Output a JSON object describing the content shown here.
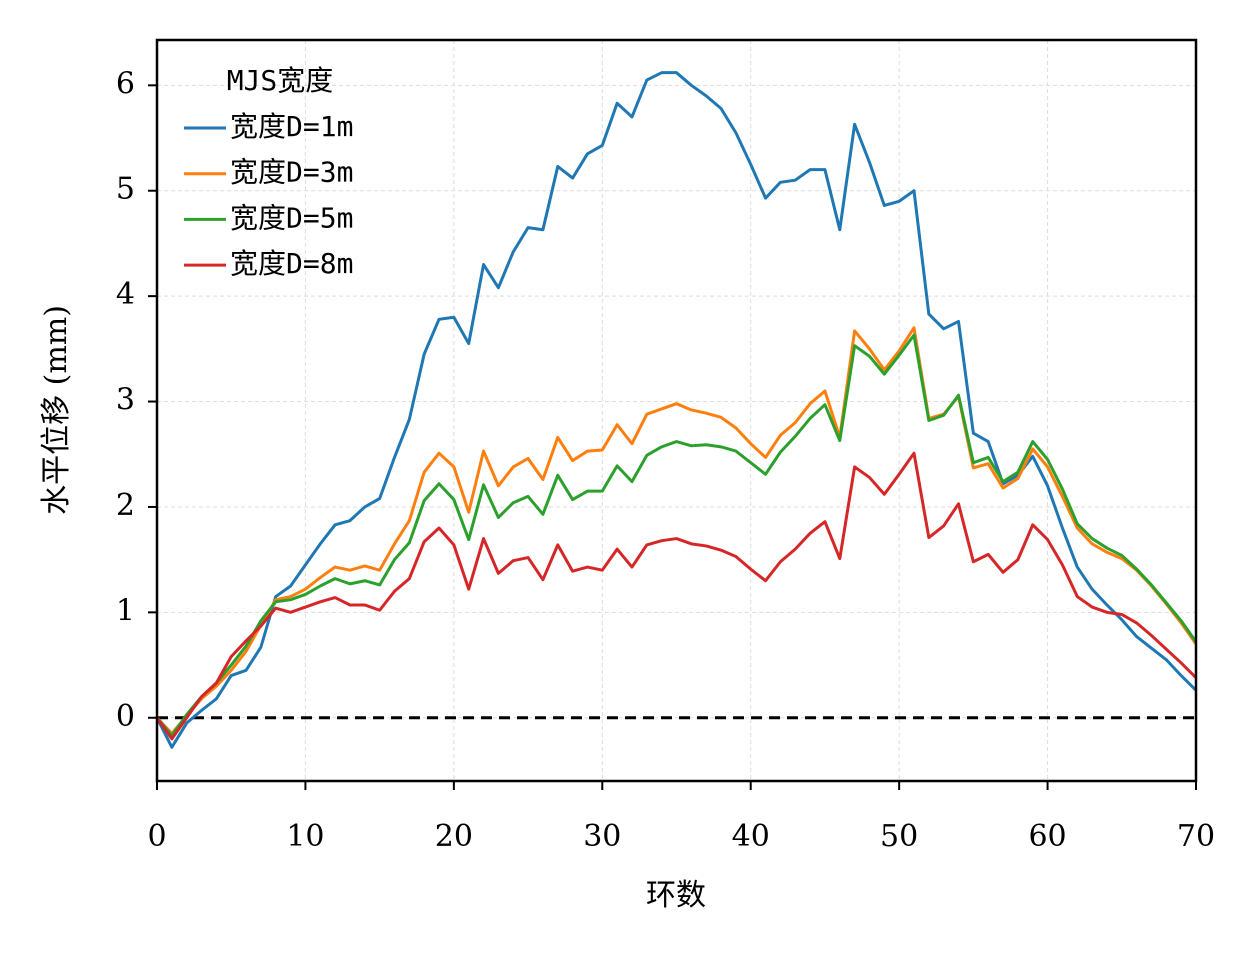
{
  "chart_data": {
    "type": "line",
    "xlabel": "环数",
    "ylabel": "水平位移 (mm)",
    "legend_title": "MJS宽度",
    "legend": "upper left",
    "grid": true,
    "xlim": [
      0,
      70
    ],
    "xticks": [
      0,
      10,
      20,
      30,
      40,
      50,
      60,
      70
    ],
    "ylim": [
      -0.6,
      6.43
    ],
    "yticks": [
      0,
      1,
      2,
      3,
      4,
      5,
      6
    ],
    "hlines": [
      0
    ],
    "x": [
      0,
      1,
      2,
      3,
      4,
      5,
      6,
      7,
      8,
      9,
      10,
      11,
      12,
      13,
      14,
      15,
      16,
      17,
      18,
      19,
      20,
      21,
      22,
      23,
      24,
      25,
      26,
      27,
      28,
      29,
      30,
      31,
      32,
      33,
      34,
      35,
      36,
      37,
      38,
      39,
      40,
      41,
      42,
      43,
      44,
      45,
      46,
      47,
      48,
      49,
      50,
      51,
      52,
      53,
      54,
      55,
      56,
      57,
      58,
      59,
      60,
      61,
      62,
      63,
      64,
      65,
      66,
      67,
      68,
      69,
      70
    ],
    "series": [
      {
        "name": "宽度D=1m",
        "color": "#1f77b4",
        "values": [
          0,
          -0.28,
          -0.05,
          0.07,
          0.18,
          0.4,
          0.45,
          0.67,
          1.15,
          1.25,
          1.45,
          1.65,
          1.83,
          1.87,
          2.0,
          2.08,
          2.47,
          2.83,
          3.45,
          3.78,
          3.8,
          3.55,
          4.3,
          4.08,
          4.42,
          4.65,
          4.63,
          5.23,
          5.12,
          5.35,
          5.43,
          5.83,
          5.7,
          6.05,
          6.12,
          6.12,
          6.0,
          5.9,
          5.78,
          5.55,
          5.25,
          4.93,
          5.08,
          5.1,
          5.2,
          5.2,
          4.63,
          5.63,
          5.27,
          4.86,
          4.9,
          5.0,
          3.83,
          3.69,
          3.76,
          2.7,
          2.62,
          2.22,
          2.3,
          2.48,
          2.2,
          1.8,
          1.43,
          1.22,
          1.07,
          0.93,
          0.77,
          0.66,
          0.55,
          0.4,
          0.26
        ]
      },
      {
        "name": "宽度D=3m",
        "color": "#ff7f0e",
        "values": [
          0,
          -0.15,
          0.02,
          0.18,
          0.3,
          0.45,
          0.63,
          0.88,
          1.12,
          1.15,
          1.22,
          1.33,
          1.43,
          1.4,
          1.44,
          1.4,
          1.65,
          1.87,
          2.33,
          2.51,
          2.38,
          1.95,
          2.53,
          2.2,
          2.38,
          2.46,
          2.26,
          2.66,
          2.44,
          2.53,
          2.54,
          2.78,
          2.6,
          2.88,
          2.93,
          2.98,
          2.92,
          2.89,
          2.85,
          2.75,
          2.6,
          2.47,
          2.68,
          2.8,
          2.98,
          3.1,
          2.66,
          3.67,
          3.5,
          3.3,
          3.48,
          3.7,
          2.84,
          2.88,
          3.05,
          2.37,
          2.41,
          2.18,
          2.27,
          2.55,
          2.38,
          2.1,
          1.8,
          1.65,
          1.57,
          1.51,
          1.4,
          1.25,
          1.08,
          0.9,
          0.7
        ]
      },
      {
        "name": "宽度D=5m",
        "color": "#2ca02c",
        "values": [
          0,
          -0.17,
          0.03,
          0.2,
          0.33,
          0.5,
          0.68,
          0.92,
          1.1,
          1.12,
          1.17,
          1.25,
          1.32,
          1.27,
          1.3,
          1.26,
          1.5,
          1.66,
          2.06,
          2.22,
          2.07,
          1.69,
          2.21,
          1.9,
          2.04,
          2.1,
          1.93,
          2.3,
          2.07,
          2.15,
          2.15,
          2.39,
          2.24,
          2.49,
          2.57,
          2.62,
          2.58,
          2.59,
          2.57,
          2.53,
          2.42,
          2.31,
          2.52,
          2.67,
          2.84,
          2.97,
          2.63,
          3.53,
          3.43,
          3.26,
          3.44,
          3.63,
          2.82,
          2.87,
          3.06,
          2.42,
          2.47,
          2.24,
          2.33,
          2.62,
          2.45,
          2.17,
          1.84,
          1.7,
          1.61,
          1.54,
          1.41,
          1.26,
          1.09,
          0.92,
          0.72
        ]
      },
      {
        "name": "宽度D=8m",
        "color": "#d62728",
        "values": [
          0,
          -0.2,
          0.0,
          0.2,
          0.33,
          0.58,
          0.73,
          0.87,
          1.04,
          1.0,
          1.05,
          1.1,
          1.14,
          1.07,
          1.07,
          1.02,
          1.2,
          1.32,
          1.67,
          1.8,
          1.64,
          1.22,
          1.7,
          1.37,
          1.49,
          1.52,
          1.31,
          1.64,
          1.39,
          1.43,
          1.4,
          1.6,
          1.43,
          1.64,
          1.68,
          1.7,
          1.65,
          1.63,
          1.59,
          1.53,
          1.41,
          1.3,
          1.48,
          1.6,
          1.75,
          1.86,
          1.51,
          2.38,
          2.28,
          2.12,
          2.31,
          2.51,
          1.71,
          1.82,
          2.03,
          1.48,
          1.55,
          1.38,
          1.5,
          1.83,
          1.69,
          1.45,
          1.15,
          1.05,
          1.0,
          0.98,
          0.9,
          0.78,
          0.65,
          0.52,
          0.38
        ]
      }
    ]
  }
}
